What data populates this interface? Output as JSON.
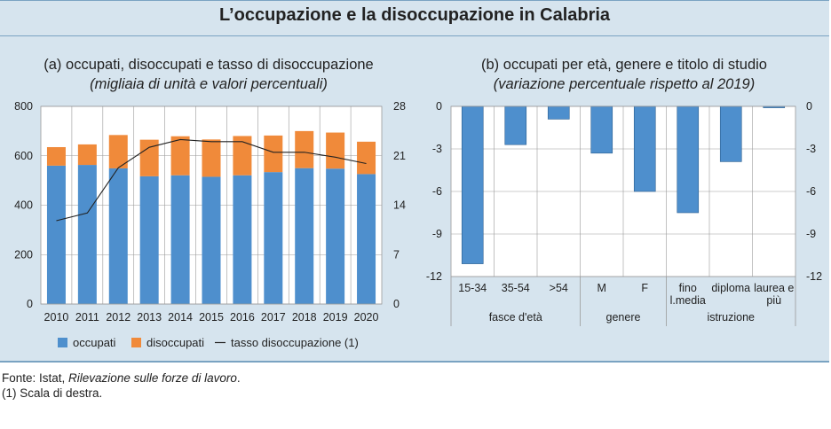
{
  "title": "L’occupazione e la disoccupazione in Calabria",
  "source": {
    "prefix": "Fonte: Istat, ",
    "italic": "Rilevazione sulle forze di lavoro",
    "suffix": ".",
    "note": "(1) Scala di destra."
  },
  "colors": {
    "occupati": "#4e8fcd",
    "disoccupati": "#f08a3a",
    "line": "#222222",
    "grid": "#9a9a9a"
  },
  "chart_data": [
    {
      "type": "bar",
      "stacked": true,
      "title": "(a) occupati, disoccupati e tasso di disoccupazione",
      "subtitle": "(migliaia di unità e valori percentuali)",
      "categories": [
        "2010",
        "2011",
        "2012",
        "2013",
        "2014",
        "2015",
        "2016",
        "2017",
        "2018",
        "2019",
        "2020"
      ],
      "series": [
        {
          "name": "occupati",
          "values": [
            560,
            563,
            549,
            517,
            521,
            515,
            521,
            534,
            550,
            548,
            526
          ]
        },
        {
          "name": "disoccupati",
          "values": [
            75,
            83,
            135,
            148,
            158,
            151,
            159,
            148,
            150,
            146,
            131
          ]
        },
        {
          "name": "tasso disoccupazione (1)",
          "axis": "right",
          "values": [
            11.8,
            12.9,
            19.3,
            22.2,
            23.3,
            23.0,
            23.0,
            21.5,
            21.5,
            20.8,
            19.9
          ]
        }
      ],
      "ylim_left": [
        0,
        800
      ],
      "yticks_left": [
        "0",
        "200",
        "400",
        "600",
        "800"
      ],
      "ylim_right": [
        0,
        28
      ],
      "yticks_right": [
        "0",
        "7",
        "14",
        "21",
        "28"
      ],
      "legend": [
        "occupati",
        "disoccupati",
        "tasso disoccupazione (1)"
      ],
      "legend_position": "bottom"
    },
    {
      "type": "bar",
      "title": "(b) occupati per età, genere e titolo di studio",
      "subtitle": "(variazione percentuale rispetto al 2019)",
      "categories": [
        "15-34",
        "35-54",
        ">54",
        "M",
        "F",
        "fino l.media",
        "diploma",
        "laurea e più"
      ],
      "category_lines": [
        [
          "15-34"
        ],
        [
          "35-54"
        ],
        [
          ">54"
        ],
        [
          "M"
        ],
        [
          "F"
        ],
        [
          "fino",
          "l.media"
        ],
        [
          "diploma"
        ],
        [
          "laurea e",
          "più"
        ]
      ],
      "values": [
        -11.1,
        -2.7,
        -0.9,
        -3.3,
        -6.0,
        -7.5,
        -3.9,
        -0.1
      ],
      "groups": [
        {
          "label": "fasce d'età",
          "count": 3
        },
        {
          "label": "genere",
          "count": 2
        },
        {
          "label": "istruzione",
          "count": 3
        }
      ],
      "ylim": [
        -12,
        0
      ],
      "yticks": [
        "0",
        "-3",
        "-6",
        "-9",
        "-12"
      ]
    }
  ]
}
